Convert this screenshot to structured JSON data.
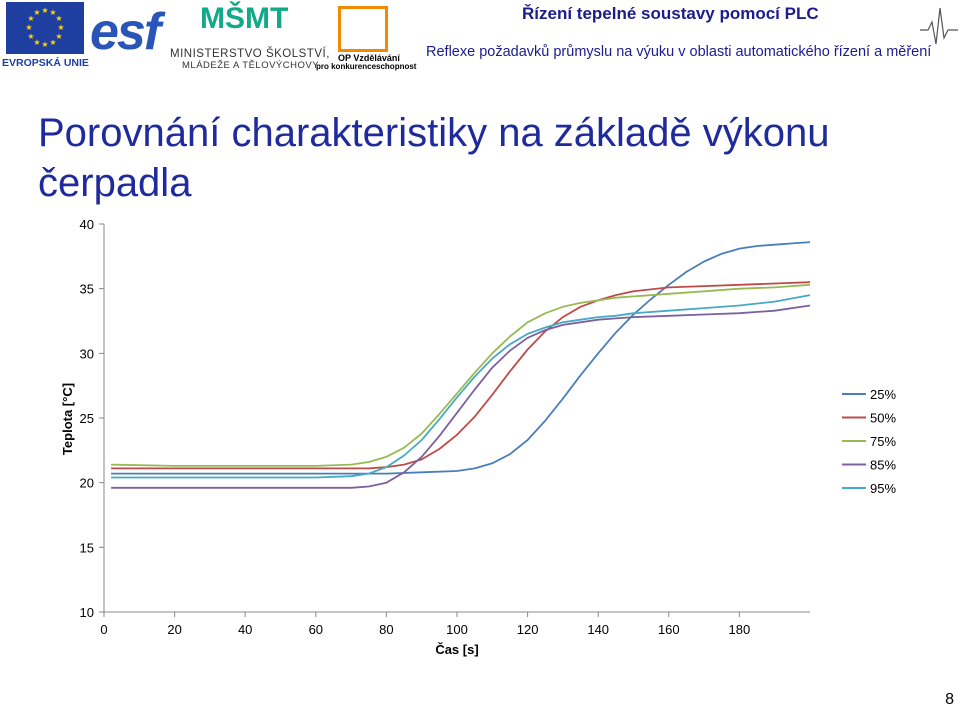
{
  "header": {
    "eu_label": "EVROPSKÁ UNIE",
    "esf_logo_text": "esf",
    "msmt_logo_text": "MŠMT",
    "msmt_label_line1": "MINISTERSTVO ŠKOLSTVÍ,",
    "msmt_label_line2": "MLÁDEŽE A TĚLOVÝCHOVY",
    "op_label_line1": "OP Vzdělávání",
    "op_label_line2": "pro konkurenceschopnost",
    "title": "Řízení tepelné soustavy pomocí PLC",
    "subtitle": "Reflexe požadavků průmyslu na výuku v oblasti automatického řízení a měření"
  },
  "slide": {
    "title": "Porovnání charakteristiky na základě výkonu čerpadla",
    "page_number": "8"
  },
  "colors": {
    "title": "#1f2a9c",
    "header_text": "#1c1c8c",
    "axis": "#888888"
  },
  "chart_data": {
    "type": "line",
    "title": "",
    "xlabel": "Čas [s]",
    "ylabel": "Teplota [°C]",
    "xlim": [
      0,
      200
    ],
    "ylim": [
      10,
      40
    ],
    "xticks": [
      0,
      20,
      40,
      60,
      80,
      100,
      120,
      140,
      160,
      180
    ],
    "yticks": [
      10,
      15,
      20,
      25,
      30,
      35,
      40
    ],
    "grid": false,
    "legend": "right",
    "series": [
      {
        "name": "25%",
        "color": "#4a7ebb",
        "x": [
          2,
          20,
          40,
          60,
          80,
          90,
          100,
          105,
          110,
          115,
          120,
          125,
          130,
          135,
          140,
          145,
          150,
          155,
          160,
          165,
          170,
          175,
          180,
          185,
          190,
          195,
          200
        ],
        "y": [
          20.7,
          20.7,
          20.7,
          20.7,
          20.7,
          20.8,
          20.9,
          21.1,
          21.5,
          22.2,
          23.3,
          24.8,
          26.5,
          28.3,
          30.0,
          31.6,
          33.0,
          34.2,
          35.3,
          36.3,
          37.1,
          37.7,
          38.1,
          38.3,
          38.4,
          38.5,
          38.6
        ]
      },
      {
        "name": "50%",
        "color": "#be4b48",
        "x": [
          2,
          20,
          40,
          60,
          75,
          80,
          85,
          90,
          95,
          100,
          105,
          110,
          115,
          120,
          125,
          130,
          135,
          140,
          145,
          150,
          160,
          170,
          180,
          190,
          200
        ],
        "y": [
          21.1,
          21.1,
          21.1,
          21.1,
          21.1,
          21.2,
          21.4,
          21.8,
          22.6,
          23.7,
          25.1,
          26.8,
          28.6,
          30.3,
          31.7,
          32.8,
          33.6,
          34.1,
          34.5,
          34.8,
          35.1,
          35.2,
          35.3,
          35.4,
          35.5
        ]
      },
      {
        "name": "75%",
        "color": "#98b954",
        "x": [
          2,
          20,
          40,
          60,
          70,
          75,
          80,
          85,
          90,
          95,
          100,
          105,
          110,
          115,
          120,
          125,
          130,
          135,
          140,
          145,
          150,
          160,
          170,
          180,
          190,
          200
        ],
        "y": [
          21.4,
          21.3,
          21.3,
          21.3,
          21.4,
          21.6,
          22.0,
          22.7,
          23.8,
          25.3,
          26.9,
          28.5,
          30.0,
          31.3,
          32.4,
          33.1,
          33.6,
          33.9,
          34.1,
          34.3,
          34.4,
          34.6,
          34.8,
          35.0,
          35.1,
          35.3
        ]
      },
      {
        "name": "85%",
        "color": "#7d60a0",
        "x": [
          2,
          20,
          40,
          60,
          70,
          75,
          80,
          85,
          90,
          95,
          100,
          105,
          110,
          115,
          120,
          125,
          130,
          135,
          140,
          145,
          150,
          160,
          170,
          180,
          190,
          200
        ],
        "y": [
          19.6,
          19.6,
          19.6,
          19.6,
          19.6,
          19.7,
          20.0,
          20.8,
          22.0,
          23.6,
          25.4,
          27.2,
          28.9,
          30.2,
          31.2,
          31.8,
          32.2,
          32.4,
          32.6,
          32.7,
          32.8,
          32.9,
          33.0,
          33.1,
          33.3,
          33.7
        ]
      },
      {
        "name": "95%",
        "color": "#46aac5",
        "x": [
          2,
          20,
          40,
          60,
          70,
          75,
          80,
          85,
          90,
          95,
          100,
          105,
          110,
          115,
          120,
          125,
          130,
          135,
          140,
          145,
          150,
          160,
          170,
          180,
          190,
          200
        ],
        "y": [
          20.4,
          20.4,
          20.4,
          20.4,
          20.5,
          20.7,
          21.2,
          22.1,
          23.3,
          24.9,
          26.6,
          28.2,
          29.6,
          30.7,
          31.5,
          32.0,
          32.4,
          32.6,
          32.8,
          32.9,
          33.1,
          33.3,
          33.5,
          33.7,
          34.0,
          34.5
        ]
      }
    ]
  }
}
